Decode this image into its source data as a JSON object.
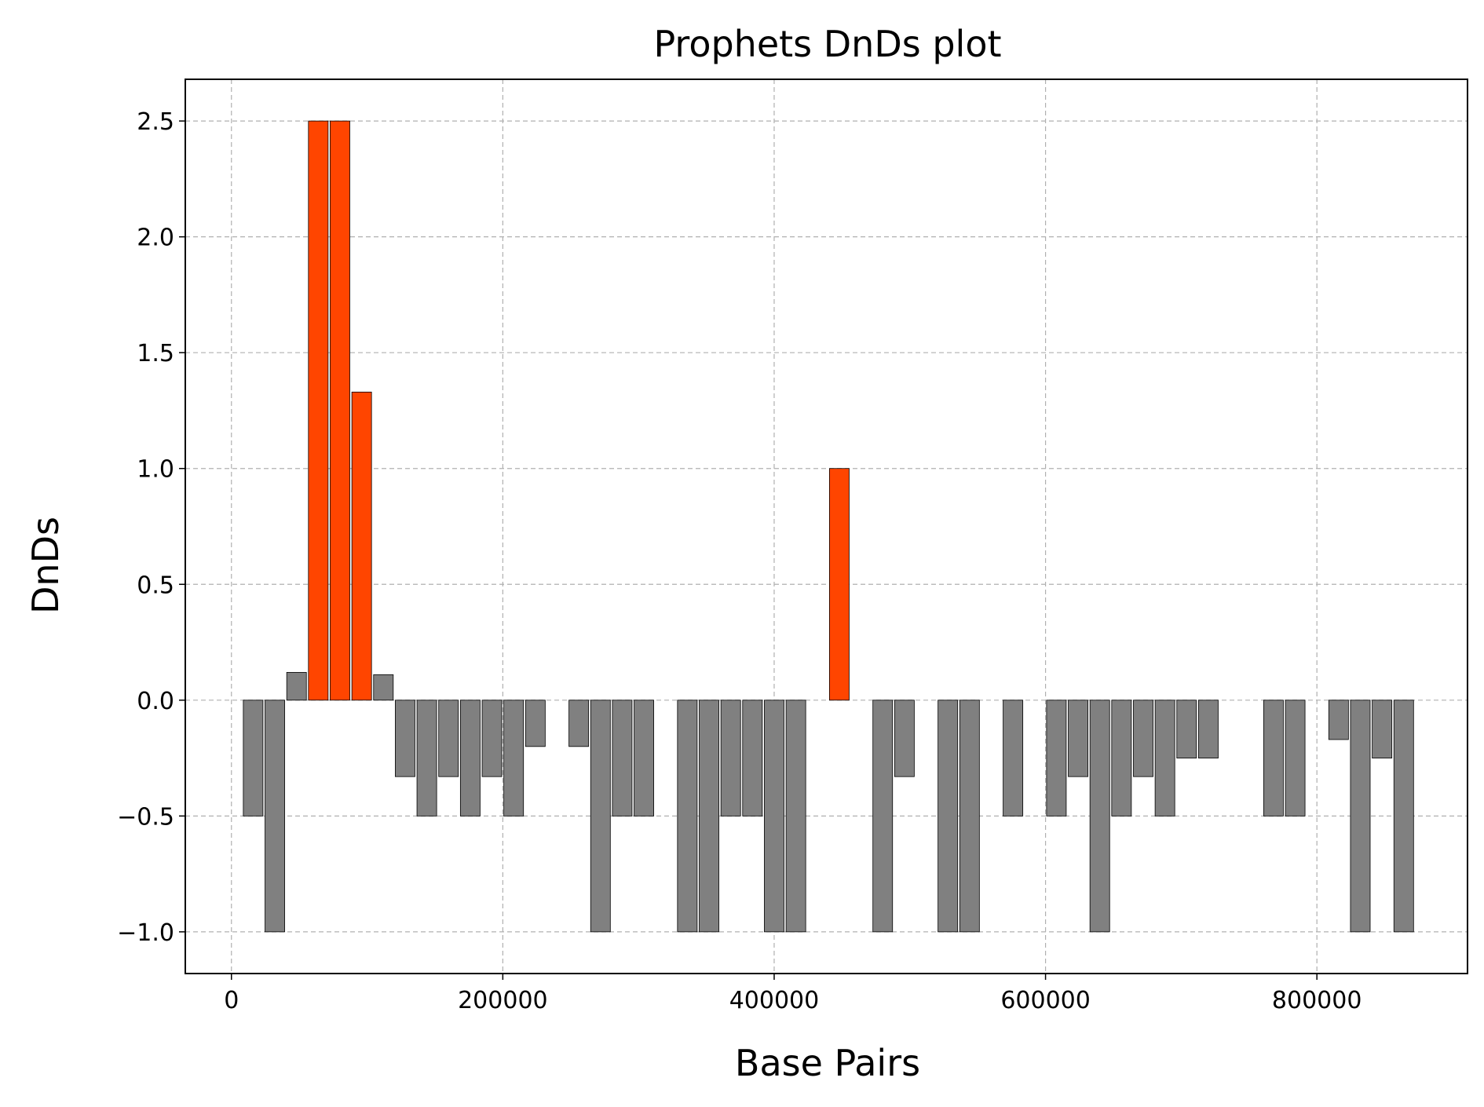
{
  "chart_data": {
    "type": "bar",
    "title": "Prophets DnDs plot",
    "xlabel": "Base Pairs",
    "ylabel": "DnDs",
    "xlim": [
      -34000,
      911000
    ],
    "ylim": [
      -1.18,
      2.68
    ],
    "xticks": [
      0,
      200000,
      400000,
      600000,
      800000
    ],
    "xtick_labels": [
      "0",
      "200000",
      "400000",
      "600000",
      "800000"
    ],
    "yticks": [
      -1.0,
      -0.5,
      0.0,
      0.5,
      1.0,
      1.5,
      2.0,
      2.5
    ],
    "ytick_labels": [
      "−1.0",
      "−0.5",
      "0.0",
      "0.5",
      "1.0",
      "1.5",
      "2.0",
      "2.5"
    ],
    "grid": true,
    "bar_width": 14500,
    "colors": {
      "positive": "#ff4500",
      "negative": "#808080",
      "edge": "#000000"
    },
    "threshold": 1.0,
    "bars": [
      {
        "x": 16000,
        "value": -0.5
      },
      {
        "x": 32000,
        "value": -1.0
      },
      {
        "x": 48000,
        "value": 0.12
      },
      {
        "x": 64000,
        "value": 2.5
      },
      {
        "x": 80000,
        "value": 2.5
      },
      {
        "x": 96000,
        "value": 1.33
      },
      {
        "x": 112000,
        "value": 0.11
      },
      {
        "x": 128000,
        "value": -0.33
      },
      {
        "x": 144000,
        "value": -0.5
      },
      {
        "x": 160000,
        "value": -0.33
      },
      {
        "x": 176000,
        "value": -0.5
      },
      {
        "x": 192000,
        "value": -0.33
      },
      {
        "x": 208000,
        "value": -0.5
      },
      {
        "x": 224000,
        "value": -0.2
      },
      {
        "x": 256000,
        "value": -0.2
      },
      {
        "x": 272000,
        "value": -1.0
      },
      {
        "x": 288000,
        "value": -0.5
      },
      {
        "x": 304000,
        "value": -0.5
      },
      {
        "x": 336000,
        "value": -1.0
      },
      {
        "x": 352000,
        "value": -1.0
      },
      {
        "x": 368000,
        "value": -0.5
      },
      {
        "x": 384000,
        "value": -0.5
      },
      {
        "x": 400000,
        "value": -1.0
      },
      {
        "x": 416000,
        "value": -1.0
      },
      {
        "x": 448000,
        "value": 1.0
      },
      {
        "x": 480000,
        "value": -1.0
      },
      {
        "x": 496000,
        "value": -0.33
      },
      {
        "x": 528000,
        "value": -1.0
      },
      {
        "x": 544000,
        "value": -1.0
      },
      {
        "x": 576000,
        "value": -0.5
      },
      {
        "x": 608000,
        "value": -0.5
      },
      {
        "x": 624000,
        "value": -0.33
      },
      {
        "x": 640000,
        "value": -1.0
      },
      {
        "x": 656000,
        "value": -0.5
      },
      {
        "x": 672000,
        "value": -0.33
      },
      {
        "x": 688000,
        "value": -0.5
      },
      {
        "x": 704000,
        "value": -0.25
      },
      {
        "x": 720000,
        "value": -0.25
      },
      {
        "x": 768000,
        "value": -0.5
      },
      {
        "x": 784000,
        "value": -0.5
      },
      {
        "x": 816000,
        "value": -0.17
      },
      {
        "x": 832000,
        "value": -1.0
      },
      {
        "x": 848000,
        "value": -0.25
      },
      {
        "x": 864000,
        "value": -1.0
      }
    ]
  }
}
